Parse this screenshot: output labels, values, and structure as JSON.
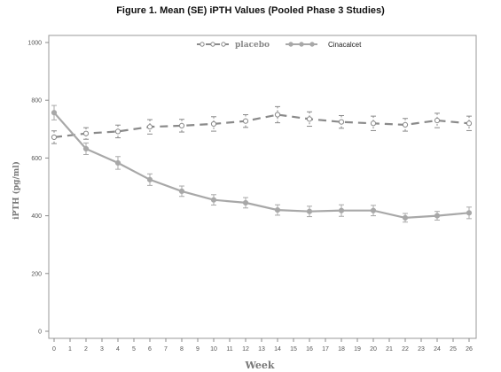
{
  "chart_data": {
    "type": "line",
    "title": "Figure 1. Mean (SE) iPTH Values (Pooled Phase 3 Studies)",
    "xlabel": "Week",
    "ylabel": "iPTH (pg/ml)",
    "xlim": [
      0,
      26
    ],
    "ylim": [
      0,
      1000
    ],
    "x_ticks": [
      "0",
      "1",
      "2",
      "3",
      "4",
      "5",
      "6",
      "7",
      "8",
      "9",
      "10",
      "11",
      "12",
      "13",
      "14",
      "15",
      "16",
      "17",
      "18",
      "19",
      "20",
      "21",
      "22",
      "23",
      "24",
      "25",
      "26"
    ],
    "y_ticks": [
      "0",
      "200",
      "400",
      "600",
      "800",
      "1000"
    ],
    "legend_position": "top",
    "grid": false,
    "series": [
      {
        "name": "placebo",
        "style": "dashed",
        "color": "#8a8a8a",
        "x": [
          0,
          2,
          4,
          6,
          8,
          10,
          12,
          14,
          16,
          18,
          20,
          22,
          24,
          26
        ],
        "y": [
          672,
          685,
          692,
          708,
          712,
          718,
          728,
          750,
          735,
          725,
          720,
          715,
          730,
          720
        ],
        "se": [
          22,
          20,
          22,
          25,
          22,
          25,
          22,
          28,
          25,
          22,
          25,
          22,
          25,
          25
        ]
      },
      {
        "name": "Cinacalcet",
        "style": "solid",
        "color": "#a8a8a8",
        "x": [
          0,
          2,
          4,
          6,
          8,
          10,
          12,
          14,
          16,
          18,
          20,
          22,
          24,
          26
        ],
        "y": [
          757,
          632,
          583,
          525,
          485,
          455,
          445,
          420,
          415,
          418,
          418,
          393,
          400,
          410
        ],
        "se": [
          25,
          20,
          22,
          20,
          18,
          18,
          18,
          18,
          18,
          20,
          18,
          15,
          15,
          20
        ]
      }
    ]
  }
}
